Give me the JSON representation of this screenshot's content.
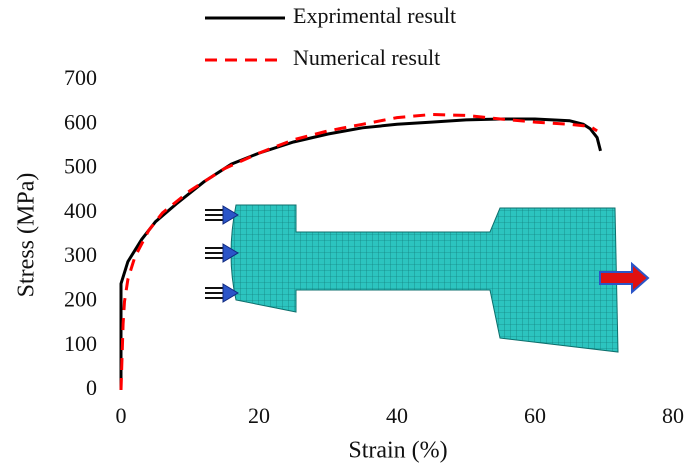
{
  "chart_data": {
    "type": "line",
    "x_label": "Strain (%)",
    "y_label": "Stress (MPa)",
    "xlim": [
      0,
      80
    ],
    "xticks": [
      0,
      20,
      40,
      60,
      80
    ],
    "ylim": [
      0,
      700
    ],
    "yticks": [
      0,
      100,
      200,
      300,
      400,
      500,
      600,
      700
    ],
    "grid": false,
    "legend": "top",
    "series": [
      {
        "name": "Exprimental result",
        "color": "#000000",
        "linestyle": "solid",
        "x": [
          0,
          0,
          1,
          3,
          5,
          8,
          12,
          16,
          20,
          25,
          30,
          35,
          40,
          45,
          50,
          55,
          60,
          65,
          67,
          68,
          69,
          69.5
        ],
        "values": [
          0,
          240,
          290,
          340,
          380,
          420,
          470,
          510,
          535,
          560,
          578,
          592,
          600,
          605,
          610,
          612,
          612,
          608,
          600,
          590,
          570,
          540
        ]
      },
      {
        "name": "Numerical result",
        "color": "#ff0000",
        "linestyle": "dashed",
        "x": [
          0,
          0.3,
          0.5,
          1,
          2,
          4,
          6,
          10,
          15,
          20,
          25,
          30,
          35,
          40,
          45,
          50,
          55,
          60,
          65,
          68,
          69
        ],
        "values": [
          0,
          150,
          200,
          250,
          300,
          360,
          400,
          450,
          500,
          535,
          565,
          585,
          600,
          615,
          622,
          620,
          612,
          605,
          600,
          595,
          585
        ]
      }
    ]
  }
}
